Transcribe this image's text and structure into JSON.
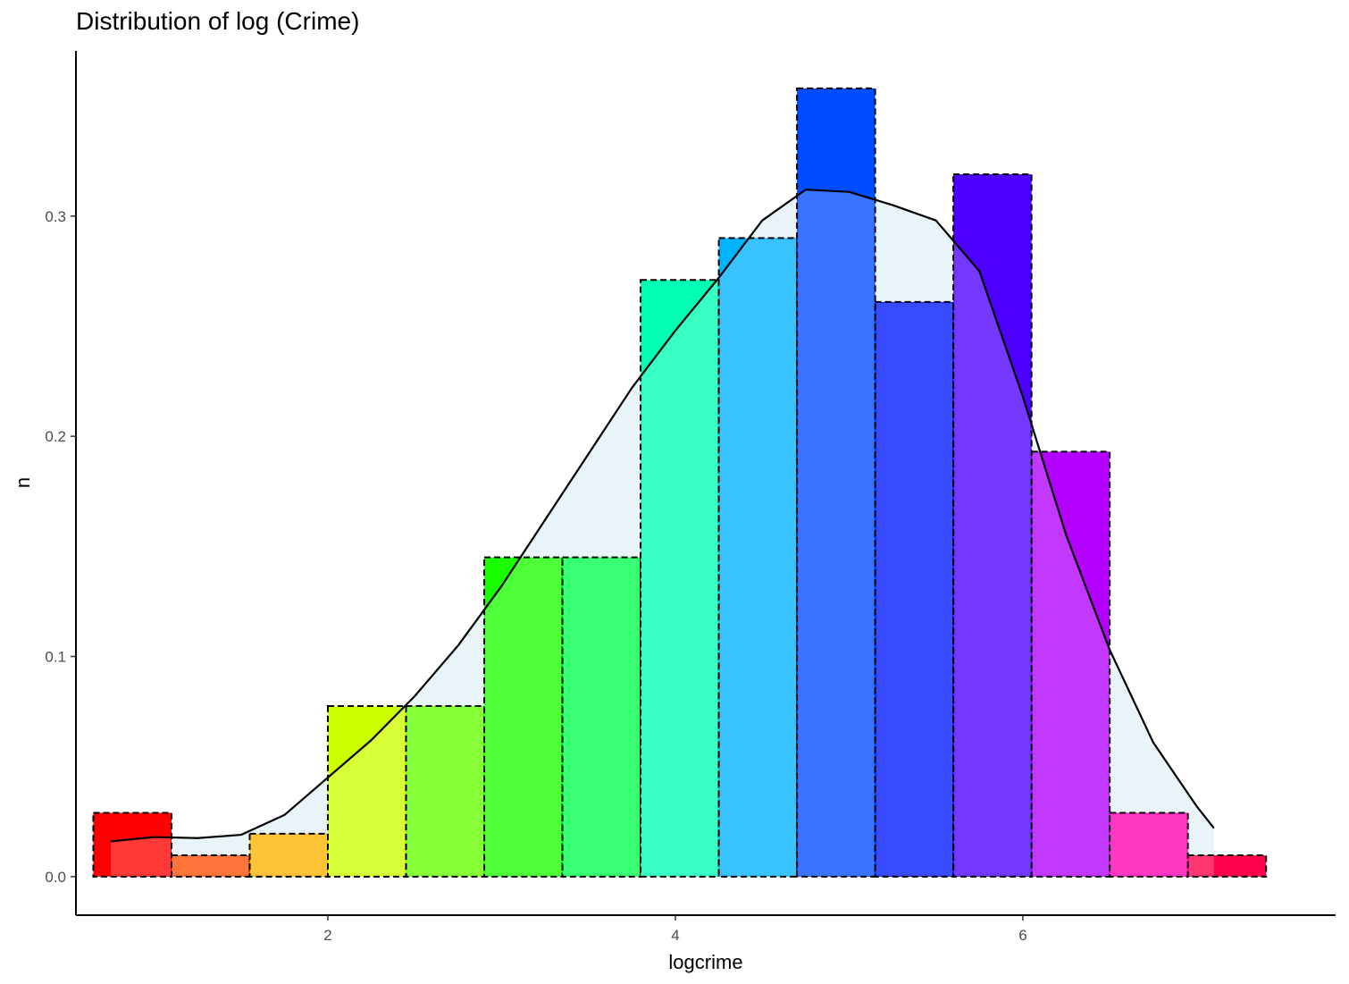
{
  "chart_data": {
    "type": "bar",
    "title": "Distribution of log (Crime)",
    "xlabel": "logcrime",
    "ylabel": "n",
    "xlim": [
      0.55,
      7.8
    ],
    "ylim": [
      -0.0175,
      0.375
    ],
    "x_ticks": [
      2,
      4,
      6
    ],
    "x_tick_labels": [
      "2",
      "4",
      "6"
    ],
    "y_ticks": [
      0.0,
      0.1,
      0.2,
      0.3
    ],
    "y_tick_labels": [
      "0.0",
      "0.1",
      "0.2",
      "0.3"
    ],
    "grid": false,
    "legend": "none",
    "bins": [
      {
        "x0": 0.65,
        "x1": 1.1,
        "value": 0.029,
        "color": "#FF0000"
      },
      {
        "x0": 1.1,
        "x1": 1.55,
        "value": 0.0097,
        "color": "#FF4D00"
      },
      {
        "x0": 1.55,
        "x1": 2.0,
        "value": 0.0195,
        "color": "#FFB300"
      },
      {
        "x0": 2.0,
        "x1": 2.45,
        "value": 0.0775,
        "color": "#CCFF00"
      },
      {
        "x0": 2.45,
        "x1": 2.9,
        "value": 0.0775,
        "color": "#66FF00"
      },
      {
        "x0": 2.9,
        "x1": 3.35,
        "value": 0.145,
        "color": "#1AFF00"
      },
      {
        "x0": 3.35,
        "x1": 3.8,
        "value": 0.145,
        "color": "#00FF4D"
      },
      {
        "x0": 3.8,
        "x1": 4.25,
        "value": 0.271,
        "color": "#00FFB3"
      },
      {
        "x0": 4.25,
        "x1": 4.7,
        "value": 0.29,
        "color": "#00B3FF"
      },
      {
        "x0": 4.7,
        "x1": 5.15,
        "value": 0.358,
        "color": "#004DFF"
      },
      {
        "x0": 5.15,
        "x1": 5.6,
        "value": 0.261,
        "color": "#0019FF"
      },
      {
        "x0": 5.6,
        "x1": 6.05,
        "value": 0.319,
        "color": "#4D00FF"
      },
      {
        "x0": 6.05,
        "x1": 6.5,
        "value": 0.193,
        "color": "#B300FF"
      },
      {
        "x0": 6.5,
        "x1": 6.95,
        "value": 0.029,
        "color": "#FF00B3"
      },
      {
        "x0": 6.95,
        "x1": 7.4,
        "value": 0.0097,
        "color": "#FF004D"
      }
    ],
    "density_series": {
      "x": [
        0.75,
        1.0,
        1.25,
        1.5,
        1.75,
        2.0,
        2.25,
        2.5,
        2.75,
        3.0,
        3.25,
        3.5,
        3.75,
        4.0,
        4.25,
        4.5,
        4.75,
        5.0,
        5.25,
        5.5,
        5.75,
        6.0,
        6.25,
        6.5,
        6.75,
        7.0,
        7.1
      ],
      "y": [
        0.016,
        0.018,
        0.0175,
        0.019,
        0.028,
        0.045,
        0.062,
        0.082,
        0.105,
        0.132,
        0.162,
        0.192,
        0.222,
        0.248,
        0.272,
        0.298,
        0.312,
        0.311,
        0.305,
        0.298,
        0.275,
        0.218,
        0.155,
        0.103,
        0.061,
        0.032,
        0.022
      ]
    },
    "density_fill": "#ADD8E6",
    "axis_color": "#000000"
  }
}
